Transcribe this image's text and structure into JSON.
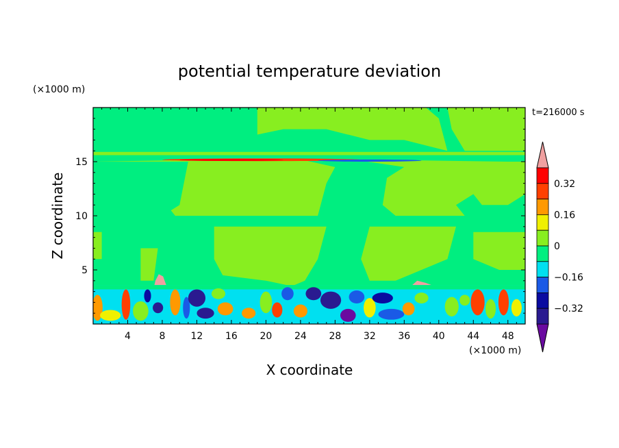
{
  "chart_data": {
    "type": "heatmap",
    "title": "potential temperature deviation",
    "xlabel": "X coordinate",
    "ylabel": "Z coordinate",
    "x_unit": "(×1000 m)",
    "y_unit": "(×1000 m)",
    "time_label": "t=216000 s",
    "xlim": [
      0,
      50
    ],
    "ylim": [
      0,
      20
    ],
    "x_ticks": [
      4,
      8,
      12,
      16,
      20,
      24,
      28,
      32,
      36,
      40,
      44,
      48
    ],
    "y_ticks": [
      5,
      10,
      15
    ],
    "colorbar": {
      "levels": [
        -0.48,
        -0.4,
        -0.32,
        -0.24,
        -0.16,
        -0.08,
        0,
        0.08,
        0.16,
        0.24,
        0.32,
        0.4,
        0.48
      ],
      "labels": [
        "0.32",
        "0.16",
        "0",
        "−0.16",
        "−0.32"
      ],
      "label_values": [
        0.32,
        0.16,
        0,
        -0.16,
        -0.32
      ],
      "colors": [
        "#6a0aa0",
        "#2a1a90",
        "#0a0aa0",
        "#1a5ae6",
        "#00e0f0",
        "#00ee80",
        "#88ee20",
        "#f0f000",
        "#ff9900",
        "#ff4000",
        "#ff0000",
        "#f0a0a0"
      ]
    },
    "regions": [
      {
        "kind": "rect",
        "x": [
          0,
          50
        ],
        "z": [
          0,
          20
        ],
        "value": -0.04
      },
      {
        "kind": "poly",
        "value": 0.04,
        "pts": [
          [
            19,
            20
          ],
          [
            38.5,
            20
          ],
          [
            40,
            19
          ],
          [
            41,
            16
          ],
          [
            36,
            17
          ],
          [
            32,
            17
          ],
          [
            27,
            18
          ],
          [
            22,
            18
          ],
          [
            19,
            17.5
          ]
        ]
      },
      {
        "kind": "poly",
        "value": 0.04,
        "pts": [
          [
            41,
            20
          ],
          [
            50,
            20
          ],
          [
            50,
            16
          ],
          [
            47,
            16
          ],
          [
            43,
            16
          ],
          [
            41.5,
            18
          ]
        ]
      },
      {
        "kind": "rect",
        "x": [
          0,
          50
        ],
        "z": [
          15.6,
          15.9
        ],
        "value": 0.04
      },
      {
        "kind": "poly",
        "value": 0.04,
        "pts": [
          [
            0,
            15
          ],
          [
            11,
            15
          ],
          [
            10.5,
            13
          ],
          [
            10,
            11
          ],
          [
            9,
            10.5
          ],
          [
            9.5,
            10
          ],
          [
            20,
            10
          ],
          [
            26,
            10
          ],
          [
            27,
            13
          ],
          [
            28,
            14.5
          ],
          [
            24,
            15.2
          ],
          [
            15,
            15.2
          ]
        ]
      },
      {
        "kind": "poly",
        "value": 0.04,
        "pts": [
          [
            30,
            15.2
          ],
          [
            48,
            15
          ],
          [
            50,
            15
          ],
          [
            50,
            12
          ],
          [
            48,
            11
          ],
          [
            45,
            11
          ],
          [
            44,
            12
          ],
          [
            42,
            11
          ],
          [
            43,
            10
          ],
          [
            40,
            10
          ],
          [
            35,
            10
          ],
          [
            33.5,
            11
          ],
          [
            34,
            13.5
          ],
          [
            36,
            14.5
          ]
        ]
      },
      {
        "kind": "poly",
        "value": 0.04,
        "pts": [
          [
            14,
            9
          ],
          [
            27,
            9
          ],
          [
            26,
            6
          ],
          [
            24.5,
            4
          ],
          [
            23,
            3.5
          ],
          [
            20,
            4
          ],
          [
            15,
            4.5
          ],
          [
            14,
            6
          ]
        ]
      },
      {
        "kind": "poly",
        "value": 0.04,
        "pts": [
          [
            32,
            9
          ],
          [
            42,
            9
          ],
          [
            41,
            6
          ],
          [
            38,
            5
          ],
          [
            35,
            4
          ],
          [
            32,
            4
          ],
          [
            31,
            6
          ]
        ]
      },
      {
        "kind": "poly",
        "value": 0.04,
        "pts": [
          [
            44,
            8.5
          ],
          [
            50,
            8.5
          ],
          [
            50,
            5
          ],
          [
            47,
            5
          ],
          [
            44,
            6
          ]
        ]
      },
      {
        "kind": "poly",
        "value": 0.04,
        "pts": [
          [
            5.5,
            7
          ],
          [
            7.5,
            7
          ],
          [
            7,
            4
          ],
          [
            5.5,
            4
          ]
        ]
      },
      {
        "kind": "rect",
        "x": [
          0,
          1
        ],
        "z": [
          6,
          8.5
        ],
        "value": 0.04
      },
      {
        "kind": "poly",
        "value": 0.44,
        "pts": [
          [
            6.8,
            2.5
          ],
          [
            7.2,
            4
          ],
          [
            7.6,
            4.6
          ],
          [
            8.1,
            4.4
          ],
          [
            8.5,
            3.5
          ],
          [
            8.3,
            2.6
          ],
          [
            7.5,
            2.2
          ]
        ]
      },
      {
        "kind": "poly",
        "value": 0.44,
        "pts": [
          [
            36.5,
            3.3
          ],
          [
            37.5,
            4
          ],
          [
            38.5,
            3.8
          ],
          [
            39.5,
            3.5
          ],
          [
            38,
            3.2
          ]
        ]
      },
      {
        "kind": "rect",
        "x": [
          0,
          50
        ],
        "z": [
          0,
          3.6
        ],
        "value": -0.12
      },
      {
        "kind": "rect",
        "x": [
          0,
          50
        ],
        "z": [
          3.2,
          3.6
        ],
        "value": -0.04
      },
      {
        "kind": "band",
        "x": [
          8,
          31
        ],
        "z": [
          15.05,
          15.3
        ],
        "value": 0.28
      },
      {
        "kind": "band",
        "x": [
          10,
          22
        ],
        "z": [
          15.1,
          15.22
        ],
        "value": 0.36
      },
      {
        "kind": "band",
        "x": [
          26,
          38
        ],
        "z": [
          15.0,
          15.2
        ],
        "value": -0.2
      }
    ],
    "blobs": [
      {
        "x": 0.5,
        "z": 1.5,
        "rx": 0.6,
        "rz": 1.2,
        "value": 0.2
      },
      {
        "x": 2,
        "z": 0.8,
        "rx": 1.2,
        "rz": 0.5,
        "value": 0.12
      },
      {
        "x": 3.8,
        "z": 1.8,
        "rx": 0.5,
        "rz": 1.4,
        "value": 0.28
      },
      {
        "x": 5.5,
        "z": 1.2,
        "rx": 0.9,
        "rz": 0.9,
        "value": 0.04
      },
      {
        "x": 6.3,
        "z": 2.6,
        "rx": 0.4,
        "rz": 0.6,
        "value": -0.28
      },
      {
        "x": 7.5,
        "z": 1.5,
        "rx": 0.6,
        "rz": 0.5,
        "value": -0.36
      },
      {
        "x": 9.5,
        "z": 2.0,
        "rx": 0.6,
        "rz": 1.2,
        "value": 0.2
      },
      {
        "x": 10.8,
        "z": 1.5,
        "rx": 0.4,
        "rz": 1.0,
        "value": -0.2
      },
      {
        "x": 12,
        "z": 2.4,
        "rx": 1.0,
        "rz": 0.8,
        "value": -0.36
      },
      {
        "x": 13,
        "z": 1.0,
        "rx": 1.0,
        "rz": 0.5,
        "value": -0.36
      },
      {
        "x": 14.5,
        "z": 2.8,
        "rx": 0.8,
        "rz": 0.5,
        "value": 0.04
      },
      {
        "x": 15.3,
        "z": 1.4,
        "rx": 0.9,
        "rz": 0.6,
        "value": 0.2
      },
      {
        "x": 17,
        "z": 2.5,
        "rx": 0.8,
        "rz": 0.7,
        "value": -0.12
      },
      {
        "x": 18,
        "z": 1.0,
        "rx": 0.8,
        "rz": 0.5,
        "value": 0.2
      },
      {
        "x": 20,
        "z": 2.0,
        "rx": 0.7,
        "rz": 1.0,
        "value": 0.04
      },
      {
        "x": 21.3,
        "z": 1.3,
        "rx": 0.6,
        "rz": 0.7,
        "value": 0.28
      },
      {
        "x": 22.5,
        "z": 2.8,
        "rx": 0.7,
        "rz": 0.6,
        "value": -0.2
      },
      {
        "x": 24,
        "z": 1.2,
        "rx": 0.8,
        "rz": 0.6,
        "value": 0.2
      },
      {
        "x": 25.5,
        "z": 2.8,
        "rx": 0.9,
        "rz": 0.6,
        "value": -0.36
      },
      {
        "x": 27.5,
        "z": 2.2,
        "rx": 1.2,
        "rz": 0.8,
        "value": -0.36
      },
      {
        "x": 29.5,
        "z": 0.8,
        "rx": 0.9,
        "rz": 0.6,
        "value": -0.44
      },
      {
        "x": 30.5,
        "z": 2.5,
        "rx": 0.9,
        "rz": 0.6,
        "value": -0.2
      },
      {
        "x": 32,
        "z": 1.5,
        "rx": 0.7,
        "rz": 0.9,
        "value": 0.12
      },
      {
        "x": 33.5,
        "z": 2.4,
        "rx": 1.2,
        "rz": 0.5,
        "value": -0.28
      },
      {
        "x": 34.5,
        "z": 0.9,
        "rx": 1.5,
        "rz": 0.5,
        "value": -0.2
      },
      {
        "x": 36.5,
        "z": 1.4,
        "rx": 0.7,
        "rz": 0.6,
        "value": 0.2
      },
      {
        "x": 38,
        "z": 2.4,
        "rx": 0.8,
        "rz": 0.5,
        "value": 0.04
      },
      {
        "x": 39.5,
        "z": 1.8,
        "rx": 0.7,
        "rz": 0.8,
        "value": -0.12
      },
      {
        "x": 41.5,
        "z": 1.6,
        "rx": 0.8,
        "rz": 0.9,
        "value": 0.04
      },
      {
        "x": 43,
        "z": 2.2,
        "rx": 0.6,
        "rz": 0.5,
        "value": 0.04
      },
      {
        "x": 44.5,
        "z": 2.0,
        "rx": 0.8,
        "rz": 1.2,
        "value": 0.28
      },
      {
        "x": 46,
        "z": 1.4,
        "rx": 0.6,
        "rz": 0.9,
        "value": 0.04
      },
      {
        "x": 47.5,
        "z": 2.0,
        "rx": 0.6,
        "rz": 1.2,
        "value": 0.28
      },
      {
        "x": 49,
        "z": 1.5,
        "rx": 0.6,
        "rz": 0.8,
        "value": 0.12
      }
    ]
  }
}
